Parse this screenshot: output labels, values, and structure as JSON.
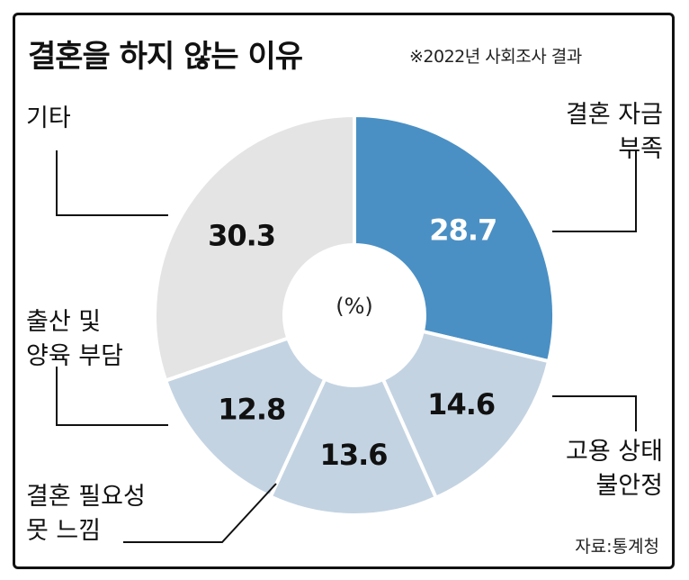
{
  "title": "결혼을 하지 않는 이유",
  "subtitle": "※2022년 사회조사 결과",
  "source": "자료:통계청",
  "chart_data": {
    "type": "pie",
    "variant": "donut",
    "unit_label": "(%)",
    "slices": [
      {
        "label_lines": [
          "결혼 자금",
          "부족"
        ],
        "value": 28.7,
        "display": "28.7",
        "color": "#4a90c4",
        "text_color": "#ffffff"
      },
      {
        "label_lines": [
          "고용 상태",
          "불안정"
        ],
        "value": 14.6,
        "display": "14.6",
        "color": "#c3d3e2",
        "text_color": "#111111"
      },
      {
        "label_lines": [
          "결혼 필요성",
          "못 느낌"
        ],
        "value": 13.6,
        "display": "13.6",
        "color": "#c3d3e2",
        "text_color": "#111111"
      },
      {
        "label_lines": [
          "출산 및",
          "양육 부담"
        ],
        "value": 12.8,
        "display": "12.8",
        "color": "#c3d3e2",
        "text_color": "#111111"
      },
      {
        "label_lines": [
          "기타"
        ],
        "value": 30.3,
        "display": "30.3",
        "color": "#e4e4e4",
        "text_color": "#111111"
      }
    ]
  }
}
